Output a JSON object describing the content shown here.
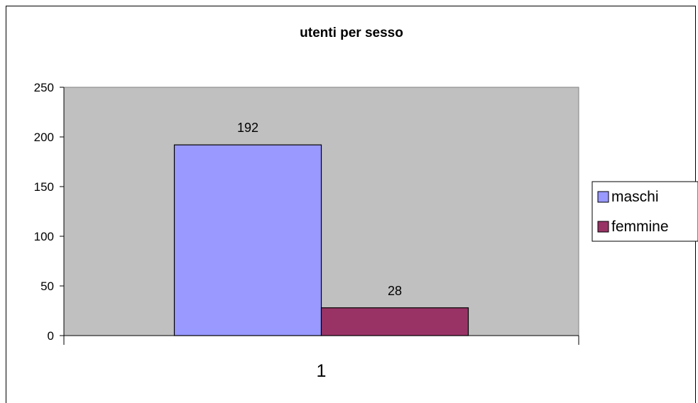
{
  "chart_data": {
    "type": "bar",
    "title": "utenti per sesso",
    "categories": [
      "1"
    ],
    "series": [
      {
        "name": "maschi",
        "values": [
          192
        ],
        "color": "#9999FF"
      },
      {
        "name": "femmine",
        "values": [
          28
        ],
        "color": "#993366"
      }
    ],
    "ylim": [
      0,
      250
    ],
    "yticks": [
      0,
      50,
      100,
      150,
      200,
      250
    ],
    "plot_background": "#C0C0C0",
    "legend_position": "right",
    "data_labels": true,
    "grid": false
  }
}
